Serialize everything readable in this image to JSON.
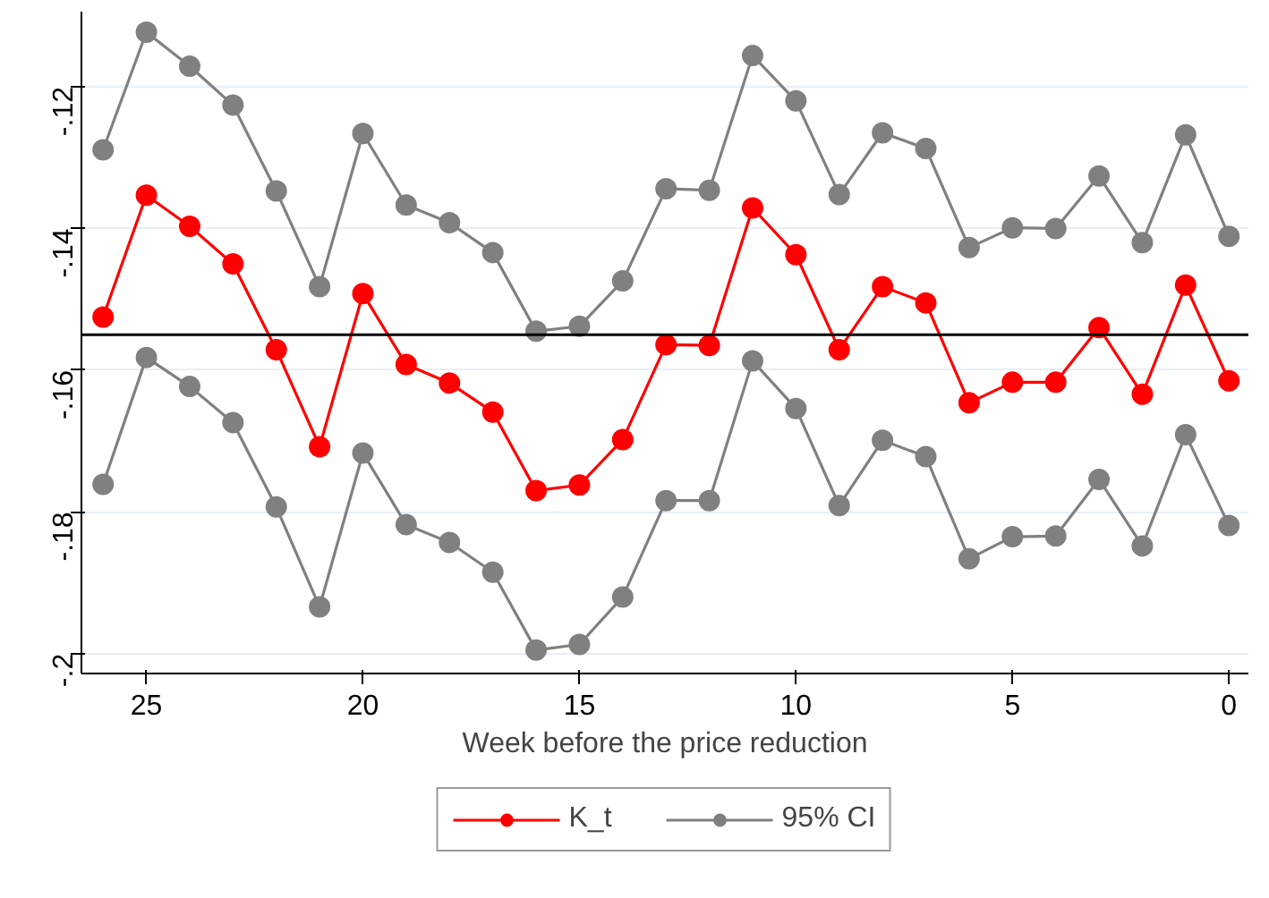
{
  "chart_data": {
    "type": "line",
    "xlabel": "Week before the price reduction",
    "x": [
      26,
      25,
      24,
      23,
      22,
      21,
      20,
      19,
      18,
      17,
      16,
      15,
      14,
      13,
      12,
      11,
      10,
      9,
      8,
      7,
      6,
      5,
      4,
      3,
      2,
      1,
      0
    ],
    "series": [
      {
        "name": "K_t",
        "color": "#ff0000",
        "values": [
          -0.1525,
          -0.1353,
          -0.1397,
          -0.145,
          -0.1571,
          -0.1708,
          -0.1492,
          -0.1592,
          -0.1618,
          -0.1659,
          -0.177,
          -0.1762,
          -0.1698,
          -0.1564,
          -0.1565,
          -0.1371,
          -0.1437,
          -0.1571,
          -0.1482,
          -0.1505,
          -0.1646,
          -0.1617,
          -0.1617,
          -0.154,
          -0.1634,
          -0.148,
          -0.1615
        ]
      },
      {
        "name": "95% CI",
        "color": "#808080",
        "values": [
          -0.1289,
          -0.1123,
          -0.1171,
          -0.1226,
          -0.1347,
          -0.1482,
          -0.1266,
          -0.1367,
          -0.1392,
          -0.1434,
          -0.1545,
          -0.1538,
          -0.1474,
          -0.1344,
          -0.1346,
          -0.1156,
          -0.122,
          -0.1352,
          -0.1265,
          -0.1287,
          -0.1427,
          -0.1399,
          -0.14,
          -0.1326,
          -0.142,
          -0.1268,
          -0.1411
        ]
      },
      {
        "color": "#808080",
        "values": [
          -0.1761,
          -0.1582,
          -0.1623,
          -0.1674,
          -0.1793,
          -0.1934,
          -0.1717,
          -0.1818,
          -0.1843,
          -0.1885,
          -0.1995,
          -0.1987,
          -0.192,
          -0.1784,
          -0.1784,
          -0.1587,
          -0.1654,
          -0.1791,
          -0.1699,
          -0.1722,
          -0.1866,
          -0.1835,
          -0.1834,
          -0.1754,
          -0.1848,
          -0.1691,
          -0.1819
        ]
      }
    ],
    "xlim": [
      26.5,
      -0.45
    ],
    "ylim": [
      -0.2028,
      -0.1094
    ],
    "xticks": [
      25,
      20,
      15,
      10,
      5,
      0
    ],
    "yticks": [
      {
        "value": -0.12,
        "label": "-.12"
      },
      {
        "value": -0.14,
        "label": "-.14"
      },
      {
        "value": -0.16,
        "label": "-.16"
      },
      {
        "value": -0.18,
        "label": "-.18"
      },
      {
        "value": -0.2,
        "label": "-.2"
      }
    ],
    "ref_lines": [
      {
        "axis": "y",
        "value": -0.155,
        "color": "#000000"
      }
    ],
    "grid": "y",
    "legend": "bottom",
    "marker": "circle",
    "line_style": "solid"
  }
}
